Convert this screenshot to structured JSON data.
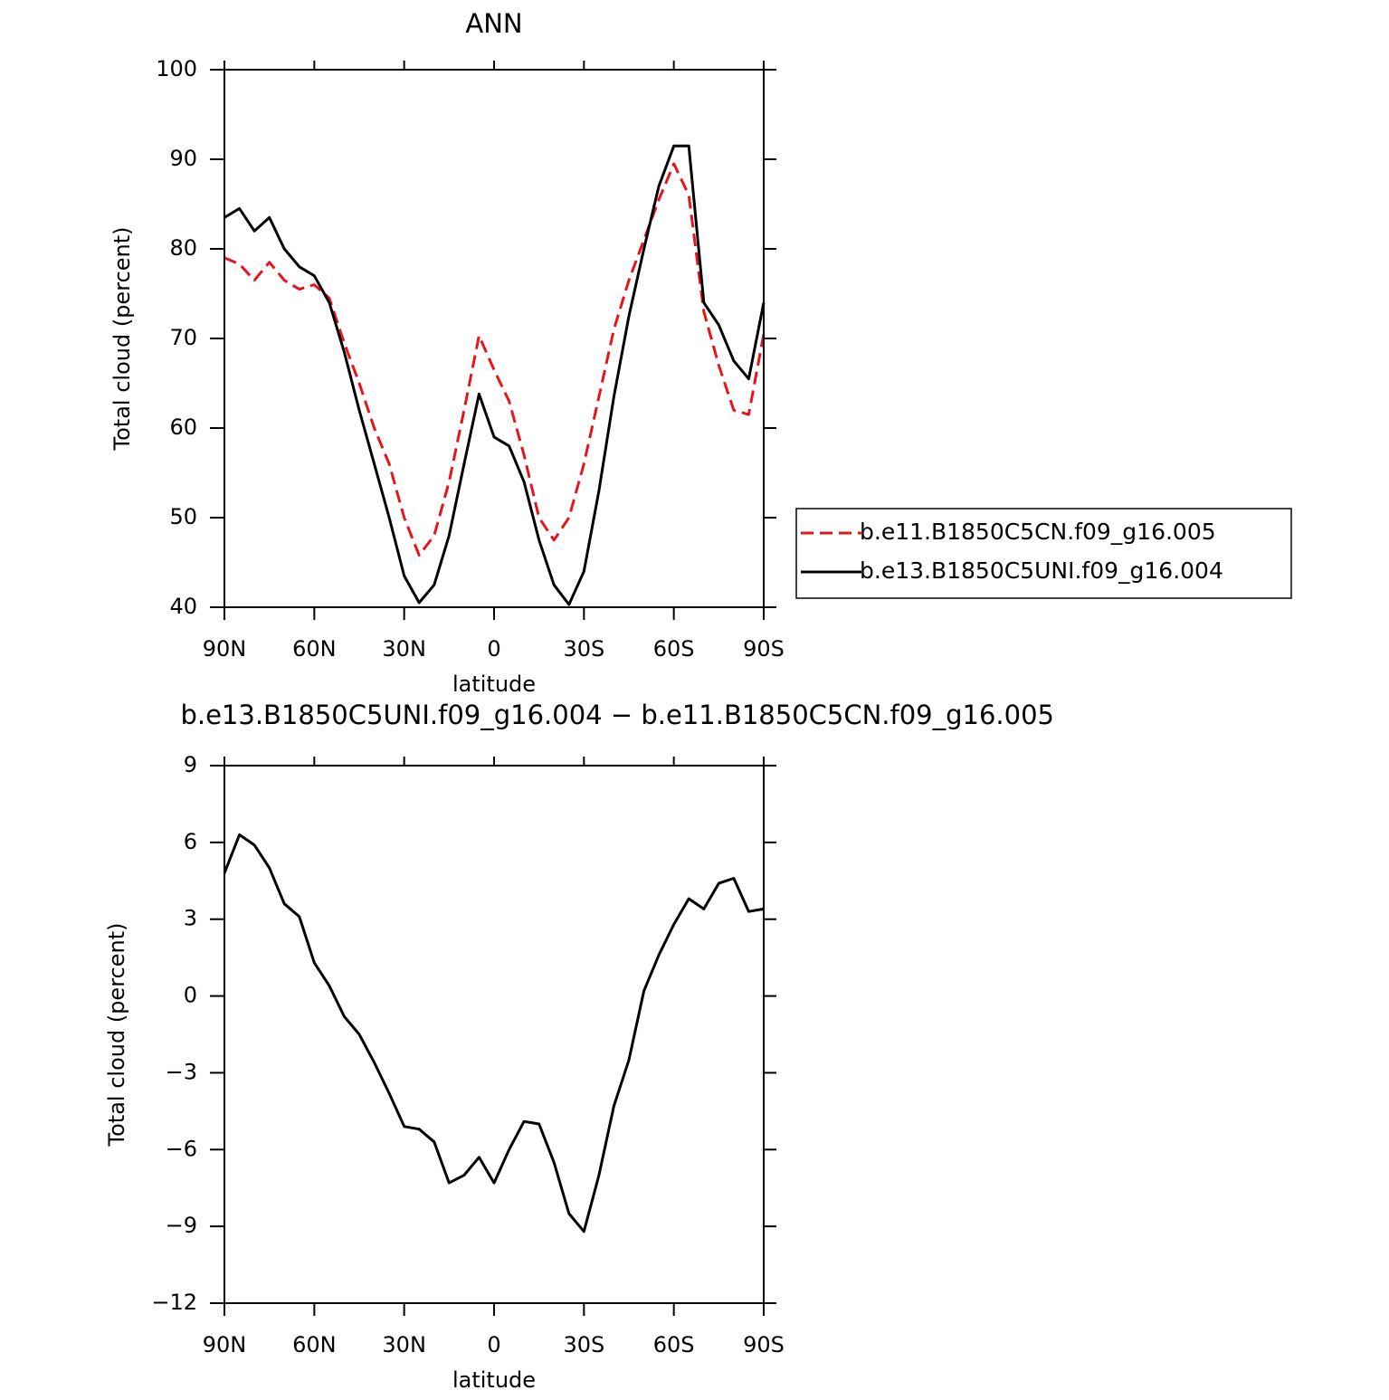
{
  "chart_data": [
    {
      "type": "line",
      "title": "ANN",
      "ylabel": "Total cloud (percent)",
      "xlabel": "latitude",
      "x": [
        90,
        85,
        80,
        75,
        70,
        65,
        60,
        55,
        50,
        45,
        40,
        35,
        30,
        25,
        20,
        15,
        10,
        5,
        0,
        -5,
        -10,
        -15,
        -20,
        -25,
        -30,
        -35,
        -40,
        -45,
        -50,
        -55,
        -60,
        -65,
        -70,
        -75,
        -80,
        -85,
        -90
      ],
      "xlim": [
        90,
        -90
      ],
      "xticks": [
        {
          "value": 90,
          "label": "90N"
        },
        {
          "value": 60,
          "label": "60N"
        },
        {
          "value": 30,
          "label": "30N"
        },
        0,
        {
          "value": -30,
          "label": "30S"
        },
        {
          "value": -60,
          "label": "60S"
        },
        {
          "value": -90,
          "label": "90S"
        }
      ],
      "ylim": [
        40,
        100
      ],
      "yticks": [
        40,
        50,
        60,
        70,
        80,
        90,
        100
      ],
      "legend": "right",
      "series": [
        {
          "name": "b.e11.B1850C5CN.f09_g16.005",
          "color": "#e8141c",
          "style": "dashed",
          "values": [
            79,
            78.3,
            76.5,
            78.5,
            76.5,
            75.5,
            76,
            74.5,
            69.5,
            65,
            60,
            56,
            50,
            45.8,
            48,
            54,
            62,
            70.3,
            66.5,
            63,
            57,
            50,
            47.5,
            50,
            56,
            63.5,
            71,
            76.5,
            81,
            85.5,
            89.5,
            86,
            73,
            67,
            62,
            61.5,
            70.5
          ]
        },
        {
          "name": "b.e13.B1850C5UNI.f09_g16.004",
          "color": "#000000",
          "style": "solid",
          "values": [
            83.5,
            84.5,
            82,
            83.5,
            80,
            78,
            77,
            74,
            68.5,
            62,
            56,
            50,
            43.5,
            40.5,
            42.5,
            48,
            56,
            63.8,
            59,
            58,
            54,
            47.5,
            42.5,
            40.3,
            44,
            53,
            63.5,
            72.5,
            80,
            87,
            91.5,
            91.5,
            74,
            71.5,
            67.5,
            65.5,
            74
          ]
        }
      ]
    },
    {
      "type": "line",
      "title": "b.e13.B1850C5UNI.f09_g16.004 − b.e11.B1850C5CN.f09_g16.005",
      "ylabel": "Total cloud (percent)",
      "xlabel": "latitude",
      "x": [
        90,
        85,
        80,
        75,
        70,
        65,
        60,
        55,
        50,
        45,
        40,
        35,
        30,
        25,
        20,
        15,
        10,
        5,
        0,
        -5,
        -10,
        -15,
        -20,
        -25,
        -30,
        -35,
        -40,
        -45,
        -50,
        -55,
        -60,
        -65,
        -70,
        -75,
        -80,
        -85,
        -90
      ],
      "xlim": [
        90,
        -90
      ],
      "xticks": [
        {
          "value": 90,
          "label": "90N"
        },
        {
          "value": 60,
          "label": "60N"
        },
        {
          "value": 30,
          "label": "30N"
        },
        0,
        {
          "value": -30,
          "label": "30S"
        },
        {
          "value": -60,
          "label": "60S"
        },
        {
          "value": -90,
          "label": "90S"
        }
      ],
      "ylim": [
        -12,
        9
      ],
      "yticks": [
        {
          "value": -12,
          "label": "−12"
        },
        {
          "value": -9,
          "label": "−9"
        },
        {
          "value": -6,
          "label": "−6"
        },
        {
          "value": -3,
          "label": "−3"
        },
        0,
        3,
        6,
        9
      ],
      "series": [
        {
          "color": "#000000",
          "style": "solid",
          "values": [
            4.8,
            6.3,
            5.9,
            5.0,
            3.6,
            3.1,
            1.3,
            0.4,
            -0.8,
            -1.5,
            -2.6,
            -3.8,
            -5.1,
            -5.2,
            -5.7,
            -7.3,
            -7.0,
            -6.3,
            -7.3,
            -6.0,
            -4.9,
            -5.0,
            -6.5,
            -8.5,
            -9.2,
            -7.0,
            -4.3,
            -2.5,
            0.2,
            1.6,
            2.8,
            3.8,
            3.4,
            4.4,
            4.6,
            3.3,
            3.4
          ]
        }
      ]
    }
  ]
}
